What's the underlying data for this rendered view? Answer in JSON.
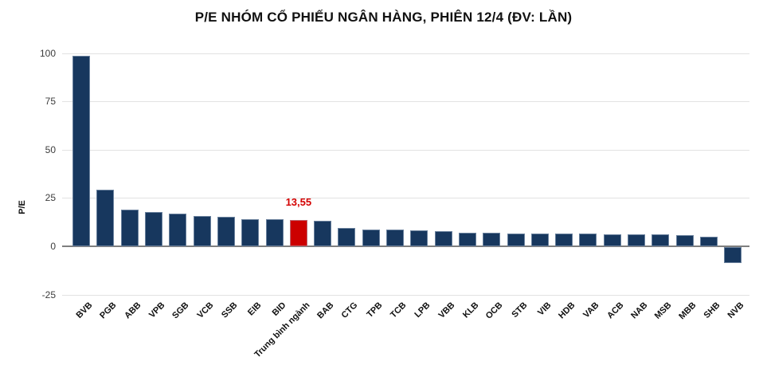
{
  "title": "P/E NHÓM CỔ PHIẾU NGÂN HÀNG, PHIÊN 12/4 (ĐV: LẦN)",
  "colors": {
    "bar": "#17375e",
    "highlight_bar": "#cc0000",
    "annotation_text": "#d40000",
    "gridline": "#e2e2e2",
    "zero_line": "#7f7f7f",
    "axis_text": "#3c3c3c",
    "label_text": "#111111",
    "background": "#ffffff"
  },
  "chart_data": {
    "type": "bar",
    "title": "P/E NHÓM CỔ PHIẾU NGÂN HÀNG, PHIÊN 12/4 (ĐV: LẦN)",
    "xlabel": "",
    "ylabel": "P/E",
    "ylim": [
      -25,
      100
    ],
    "yticks": [
      100,
      75,
      50,
      25,
      0,
      -25
    ],
    "grid": true,
    "legend": false,
    "categories": [
      "BVB",
      "PGB",
      "ABB",
      "VPB",
      "SGB",
      "VCB",
      "SSB",
      "EIB",
      "BID",
      "Trung bình ngành",
      "BAB",
      "CTG",
      "TPB",
      "TCB",
      "LPB",
      "VBB",
      "KLB",
      "OCB",
      "STB",
      "VIB",
      "HDB",
      "VAB",
      "ACB",
      "NAB",
      "MSB",
      "MBB",
      "SHB",
      "NVB"
    ],
    "values": [
      98.4,
      29.3,
      18.8,
      17.7,
      16.9,
      15.8,
      15.2,
      14.2,
      13.9,
      13.55,
      13.2,
      9.3,
      8.6,
      8.5,
      8.2,
      7.9,
      7.2,
      7.0,
      6.8,
      6.6,
      6.5,
      6.4,
      6.3,
      6.2,
      6.0,
      5.8,
      4.9,
      -8.4
    ],
    "highlight": {
      "index": 9,
      "category": "Trung bình ngành",
      "value": 13.55,
      "label": "13,55"
    }
  }
}
